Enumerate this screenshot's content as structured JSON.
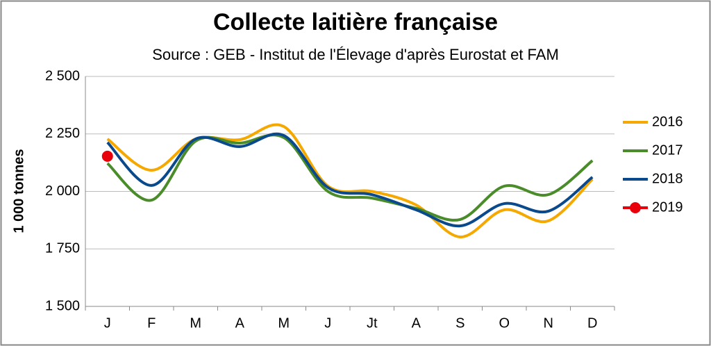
{
  "chart_data": {
    "type": "line",
    "title": "Collecte laitière française",
    "subtitle": "Source : GEB - Institut de l'Élevage d'après Eurostat et FAM",
    "y_label": "1 000 tonnes",
    "categories": [
      "J",
      "F",
      "M",
      "A",
      "M",
      "J",
      "Jt",
      "A",
      "S",
      "O",
      "N",
      "D"
    ],
    "series": [
      {
        "name": "2016",
        "color": "#f5a800",
        "values": [
          2228,
          2092,
          2228,
          2225,
          2282,
          2023,
          2000,
          1941,
          1802,
          1920,
          1872,
          2053
        ]
      },
      {
        "name": "2017",
        "color": "#4a8c2a",
        "values": [
          2122,
          1962,
          2219,
          2210,
          2234,
          2000,
          1971,
          1926,
          1878,
          2023,
          1986,
          2134
        ]
      },
      {
        "name": "2018",
        "color": "#0a4a8c",
        "values": [
          2213,
          2026,
          2228,
          2195,
          2243,
          2017,
          1986,
          1920,
          1850,
          1947,
          1914,
          2062
        ]
      },
      {
        "name": "2019",
        "color": "#e8000b",
        "marker": "circle",
        "values": [
          2153,
          null,
          null,
          null,
          null,
          null,
          null,
          null,
          null,
          null,
          null,
          null
        ]
      }
    ],
    "ylim": [
      1500,
      2500
    ],
    "yticks": [
      {
        "value": 1500,
        "label": "1 500"
      },
      {
        "value": 1750,
        "label": "1 750"
      },
      {
        "value": 2000,
        "label": "2 000"
      },
      {
        "value": 2250,
        "label": "2 250"
      },
      {
        "value": 2500,
        "label": "2 500"
      }
    ],
    "grid": true,
    "smooth": true,
    "legend": "right"
  }
}
